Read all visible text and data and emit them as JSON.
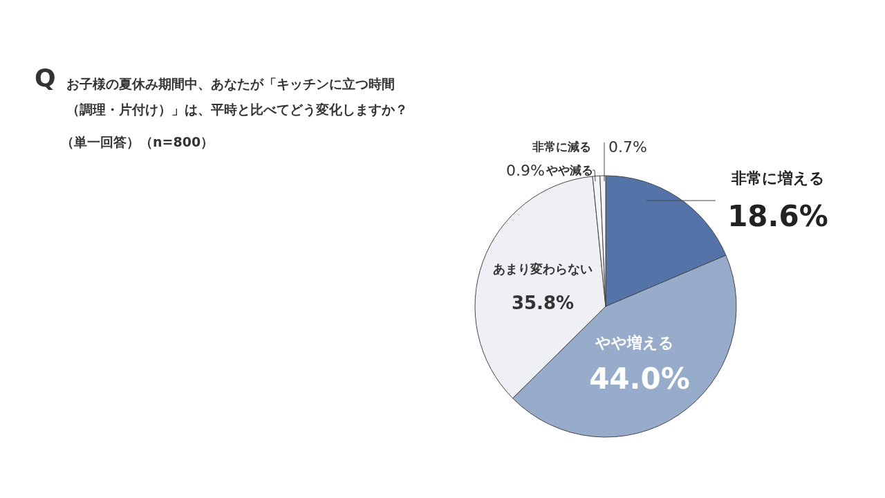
{
  "chart_data": {
    "type": "pie",
    "title": "お子様の夏休み期間中、あなたが「キッチンに立つ時間（調理・片付け）」は、平時と比べてどう変化しますか？",
    "subtitle": "（単一回答）（n=800）",
    "annotations": [
      "Q"
    ],
    "categories": [
      "非常に増える",
      "やや増える",
      "あまり変わらない",
      "やや減る",
      "非常に減る"
    ],
    "values": [
      18.6,
      44.0,
      35.8,
      0.9,
      0.7
    ],
    "value_labels": [
      "18.6%",
      "44.0%",
      "35.8%",
      "0.9%",
      "0.7%"
    ],
    "colors": [
      "#5473a8",
      "#97acca",
      "#eef0f5",
      "#f4f5f8",
      "#f4f5f8"
    ]
  }
}
